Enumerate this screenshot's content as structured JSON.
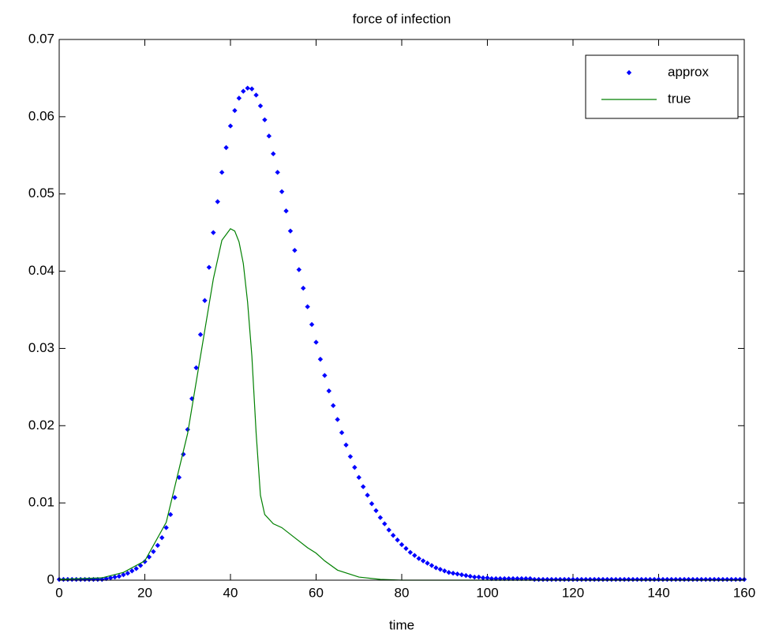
{
  "chart_data": {
    "type": "line",
    "title": "force of infection",
    "xlabel": "time",
    "xlim": [
      0,
      160
    ],
    "xticks": [
      0,
      20,
      40,
      60,
      80,
      100,
      120,
      140,
      160
    ],
    "ylim": [
      0,
      0.07
    ],
    "yticks": [
      0,
      0.01,
      0.02,
      0.03,
      0.04,
      0.05,
      0.06,
      0.07
    ],
    "grid": false,
    "legend": "upper right",
    "series": [
      {
        "name": "approx",
        "color": "#0000ff",
        "style": "markers",
        "x": [
          0,
          1,
          2,
          3,
          4,
          5,
          6,
          7,
          8,
          9,
          10,
          11,
          12,
          13,
          14,
          15,
          16,
          17,
          18,
          19,
          20,
          21,
          22,
          23,
          24,
          25,
          26,
          27,
          28,
          29,
          30,
          31,
          32,
          33,
          34,
          35,
          36,
          37,
          38,
          39,
          40,
          41,
          42,
          43,
          44,
          45,
          46,
          47,
          48,
          49,
          50,
          51,
          52,
          53,
          54,
          55,
          56,
          57,
          58,
          59,
          60,
          61,
          62,
          63,
          64,
          65,
          66,
          67,
          68,
          69,
          70,
          71,
          72,
          73,
          74,
          75,
          76,
          77,
          78,
          79,
          80,
          81,
          82,
          83,
          84,
          85,
          86,
          87,
          88,
          89,
          90,
          91,
          92,
          93,
          94,
          95,
          96,
          97,
          98,
          99,
          100,
          101,
          102,
          103,
          104,
          105,
          106,
          107,
          108,
          109,
          110,
          111,
          112,
          113,
          114,
          115,
          116,
          117,
          118,
          119,
          120,
          121,
          122,
          123,
          124,
          125,
          126,
          127,
          128,
          129,
          130,
          131,
          132,
          133,
          134,
          135,
          136,
          137,
          138,
          139,
          140,
          141,
          142,
          143,
          144,
          145,
          146,
          147,
          148,
          149,
          150,
          151,
          152,
          153,
          154,
          155,
          156,
          157,
          158,
          159,
          160
        ],
        "values": [
          0.0001,
          0.0001,
          0.0001,
          0.0001,
          0.0001,
          0.0001,
          0.0001,
          0.0001,
          0.0001,
          0.0001,
          0.0001,
          0.0002,
          0.0003,
          0.0004,
          0.0005,
          0.0007,
          0.0009,
          0.0012,
          0.0015,
          0.0019,
          0.0024,
          0.003,
          0.0037,
          0.0045,
          0.0055,
          0.0068,
          0.0085,
          0.0107,
          0.0133,
          0.0163,
          0.0195,
          0.0235,
          0.0275,
          0.0318,
          0.0362,
          0.0405,
          0.045,
          0.049,
          0.0528,
          0.056,
          0.0588,
          0.0608,
          0.0624,
          0.0633,
          0.0637,
          0.0636,
          0.0628,
          0.0614,
          0.0596,
          0.0575,
          0.0552,
          0.0528,
          0.0503,
          0.0478,
          0.0452,
          0.0427,
          0.0402,
          0.0378,
          0.0354,
          0.0331,
          0.0308,
          0.0286,
          0.0265,
          0.0245,
          0.0226,
          0.0208,
          0.0191,
          0.0175,
          0.016,
          0.0146,
          0.0133,
          0.0121,
          0.011,
          0.0099,
          0.009,
          0.0081,
          0.0073,
          0.0065,
          0.0058,
          0.0052,
          0.0046,
          0.0041,
          0.0036,
          0.0032,
          0.0028,
          0.0025,
          0.0022,
          0.0019,
          0.0016,
          0.0014,
          0.0012,
          0.001,
          0.0009,
          0.0008,
          0.0007,
          0.0006,
          0.0005,
          0.0004,
          0.0004,
          0.0003,
          0.0003,
          0.0002,
          0.0002,
          0.0002,
          0.0002,
          0.0002,
          0.0002,
          0.0002,
          0.0002,
          0.0002,
          0.0002,
          0.0001,
          0.0001,
          0.0001,
          0.0001,
          0.0001,
          0.0001,
          0.0001,
          0.0001,
          0.0001,
          0.0001,
          0.0001,
          0.0001,
          0.0001,
          0.0001,
          0.0001,
          0.0001,
          0.0001,
          0.0001,
          0.0001,
          0.0001,
          0.0001,
          0.0001,
          0.0001,
          0.0001,
          0.0001,
          0.0001,
          0.0001,
          0.0001,
          0.0001,
          0.0001,
          0.0001,
          0.0001,
          0.0001,
          0.0001,
          0.0001,
          0.0001,
          0.0001,
          0.0001,
          0.0001,
          0.0001,
          0.0001,
          0.0001,
          0.0001,
          0.0001,
          0.0001,
          0.0001,
          0.0001,
          0.0001,
          0.0001,
          0.0001
        ]
      },
      {
        "name": "true",
        "color": "#008000",
        "style": "line",
        "x": [
          0,
          10,
          15,
          20,
          25,
          30,
          33,
          36,
          38,
          40,
          41,
          42,
          43,
          44,
          45,
          46,
          47,
          48,
          50,
          52,
          55,
          58,
          60,
          62,
          65,
          70,
          75,
          80,
          90,
          100,
          160
        ],
        "values": [
          0.0001,
          0.0003,
          0.001,
          0.0025,
          0.0075,
          0.019,
          0.029,
          0.039,
          0.044,
          0.0455,
          0.0452,
          0.0438,
          0.041,
          0.036,
          0.029,
          0.019,
          0.011,
          0.0085,
          0.0073,
          0.0068,
          0.0055,
          0.0042,
          0.0035,
          0.0025,
          0.0013,
          0.0004,
          0.0001,
          0,
          0,
          0,
          0
        ]
      }
    ]
  }
}
